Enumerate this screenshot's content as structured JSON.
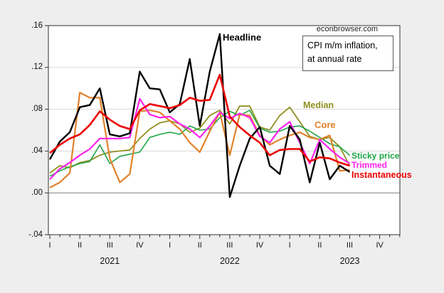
{
  "watermark": "econbrowser.com",
  "note_box": {
    "lines": [
      "CPI m/m inflation,",
      "at annual rate"
    ]
  },
  "chart_data": {
    "type": "line",
    "title": "CPI m/m inflation, at annual rate",
    "source_text": "econbrowser.com",
    "frequency": "monthly",
    "x_start": "2021-01",
    "x_end": "2023-07",
    "ylim": [
      -0.04,
      0.16
    ],
    "grid": "horizontal",
    "legend_position": "inline-annotations",
    "y_ticks": [
      {
        "label": ".16",
        "value": 0.16
      },
      {
        "label": ".12",
        "value": 0.12
      },
      {
        "label": ".08",
        "value": 0.08
      },
      {
        "label": ".04",
        "value": 0.04
      },
      {
        "label": ".00",
        "value": 0.0
      },
      {
        "label": "-.04",
        "value": -0.04
      }
    ],
    "x_axis": {
      "months_total": 36,
      "quarters": [
        {
          "label": "I",
          "month_index": 0
        },
        {
          "label": "II",
          "month_index": 3
        },
        {
          "label": "III",
          "month_index": 6
        },
        {
          "label": "IV",
          "month_index": 9
        },
        {
          "label": "I",
          "month_index": 12
        },
        {
          "label": "II",
          "month_index": 15
        },
        {
          "label": "III",
          "month_index": 18
        },
        {
          "label": "IV",
          "month_index": 21
        },
        {
          "label": "I",
          "month_index": 24
        },
        {
          "label": "II",
          "month_index": 27
        },
        {
          "label": "III",
          "month_index": 30
        },
        {
          "label": "IV",
          "month_index": 33
        }
      ],
      "years": [
        {
          "label": "2021",
          "month_index": 6
        },
        {
          "label": "2022",
          "month_index": 18
        },
        {
          "label": "2023",
          "month_index": 30
        }
      ]
    },
    "series": [
      {
        "name": "Median",
        "label": "Median",
        "color": "#8f8f20",
        "width": 1.8,
        "values": [
          0.019,
          0.026,
          0.024,
          0.029,
          0.031,
          0.036,
          0.039,
          0.04,
          0.041,
          0.052,
          0.061,
          0.067,
          0.069,
          0.066,
          0.058,
          0.062,
          0.074,
          0.079,
          0.066,
          0.083,
          0.083,
          0.063,
          0.06,
          0.074,
          0.082,
          0.068,
          0.054,
          0.051,
          0.053,
          0.044,
          0.026
        ]
      },
      {
        "name": "Sticky price",
        "label": "Sticky price",
        "color": "#1ea546",
        "width": 1.6,
        "values": [
          0.016,
          0.021,
          0.025,
          0.028,
          0.03,
          0.046,
          0.028,
          0.035,
          0.037,
          0.039,
          0.053,
          0.056,
          0.058,
          0.056,
          0.064,
          0.06,
          0.061,
          0.072,
          0.078,
          0.074,
          0.079,
          0.062,
          0.058,
          0.059,
          0.063,
          0.064,
          0.059,
          0.053,
          0.047,
          0.044,
          0.036
        ]
      },
      {
        "name": "Core",
        "label": "Core",
        "color": "#e2812b",
        "width": 2.2,
        "values": [
          0.005,
          0.01,
          0.019,
          0.096,
          0.091,
          0.091,
          0.033,
          0.01,
          0.018,
          0.078,
          0.079,
          0.077,
          0.069,
          0.061,
          0.048,
          0.039,
          0.059,
          0.077,
          0.036,
          0.075,
          0.074,
          0.055,
          0.046,
          0.051,
          0.055,
          0.058,
          0.053,
          0.051,
          0.055,
          0.021,
          0.022
        ]
      },
      {
        "name": "Trimmed",
        "label": "Trimmed",
        "color": "#ff22ee",
        "width": 2.2,
        "values": [
          0.013,
          0.023,
          0.029,
          0.036,
          0.042,
          0.052,
          0.052,
          0.052,
          0.053,
          0.09,
          0.075,
          0.072,
          0.073,
          0.066,
          0.061,
          0.053,
          0.064,
          0.077,
          0.071,
          0.076,
          0.072,
          0.054,
          0.048,
          0.061,
          0.068,
          0.048,
          0.028,
          0.051,
          0.042,
          0.034,
          0.028
        ]
      },
      {
        "name": "Headline",
        "label": "Headline",
        "color": "#000000",
        "width": 2.4,
        "values": [
          0.032,
          0.049,
          0.058,
          0.082,
          0.084,
          0.1,
          0.056,
          0.054,
          0.057,
          0.116,
          0.1,
          0.099,
          0.077,
          0.085,
          0.128,
          0.064,
          0.116,
          0.152,
          -0.004,
          0.026,
          0.052,
          0.063,
          0.026,
          0.018,
          0.064,
          0.051,
          0.01,
          0.048,
          0.013,
          0.026,
          0.02
        ]
      },
      {
        "name": "Instantaneous",
        "label": "Instantaneous",
        "color": "#eb0000",
        "width": 2.6,
        "values": [
          0.038,
          0.046,
          0.052,
          0.056,
          0.065,
          0.078,
          0.07,
          0.064,
          0.061,
          0.079,
          0.085,
          0.083,
          0.081,
          0.084,
          0.091,
          0.088,
          0.089,
          0.113,
          0.073,
          0.063,
          0.055,
          0.048,
          0.036,
          0.041,
          0.042,
          0.042,
          0.03,
          0.034,
          0.033,
          0.029,
          0.026
        ]
      }
    ],
    "layout": {
      "plot_left": 68,
      "plot_top": 36,
      "plot_right": 562,
      "plot_bottom": 330,
      "x0": 70,
      "month_step": 14.05,
      "grid_color": "#d9d9d9",
      "zero_line_color": "#808080",
      "frame_color": "#333333",
      "background": "#ffffff"
    }
  }
}
